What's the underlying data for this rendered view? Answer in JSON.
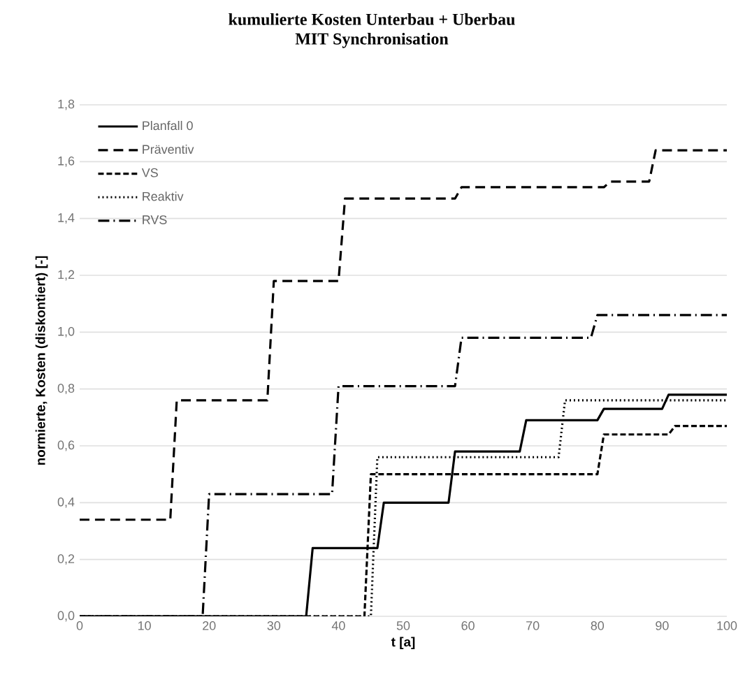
{
  "chart_data": {
    "type": "line",
    "title": "kumulierte Kosten Unterbau + Uberbau",
    "subtitle": "MIT Synchronisation",
    "xlabel": "t [a]",
    "ylabel": "normierte, Kosten (diskontiert) [-]",
    "xlim": [
      0,
      100
    ],
    "xticks": [
      0,
      10,
      20,
      30,
      40,
      50,
      60,
      70,
      80,
      90,
      100
    ],
    "ylim": [
      0,
      1.8
    ],
    "yticks": [
      {
        "value": 0,
        "label": "0,0"
      },
      {
        "value": 0.2,
        "label": "0,2"
      },
      {
        "value": 0.4,
        "label": "0,4"
      },
      {
        "value": 0.6,
        "label": "0,6"
      },
      {
        "value": 0.8,
        "label": "0,8"
      },
      {
        "value": 1.0,
        "label": "1,0"
      },
      {
        "value": 1.2,
        "label": "1,2"
      },
      {
        "value": 1.4,
        "label": "1,4"
      },
      {
        "value": 1.6,
        "label": "1,6"
      },
      {
        "value": 1.8,
        "label": "1,8"
      }
    ],
    "grid": "y",
    "legend": "top left",
    "marker": "none",
    "series": [
      {
        "name": "Planfall 0",
        "color": "#000000",
        "line_style": "solid",
        "x": [
          0,
          35,
          36,
          46,
          47,
          57,
          58,
          68,
          69,
          80,
          81,
          90,
          91,
          100
        ],
        "values": [
          0,
          0,
          0.24,
          0.24,
          0.4,
          0.4,
          0.58,
          0.58,
          0.69,
          0.69,
          0.73,
          0.73,
          0.78,
          0.78
        ]
      },
      {
        "name": "Präventiv",
        "color": "#000000",
        "line_style": "long dashed",
        "x": [
          0,
          14,
          15,
          29,
          30,
          40,
          41,
          58,
          59,
          81,
          82,
          88,
          89,
          100
        ],
        "values": [
          0.34,
          0.34,
          0.76,
          0.76,
          1.18,
          1.18,
          1.47,
          1.47,
          1.51,
          1.51,
          1.53,
          1.53,
          1.64,
          1.64
        ]
      },
      {
        "name": "VS",
        "color": "#000000",
        "line_style": "dashed",
        "x": [
          0,
          44,
          45,
          80,
          81,
          91,
          92,
          100
        ],
        "values": [
          0,
          0,
          0.5,
          0.5,
          0.64,
          0.64,
          0.67,
          0.67
        ]
      },
      {
        "name": "Reaktiv",
        "color": "#000000",
        "line_style": "dotted",
        "x": [
          0,
          45,
          46,
          74,
          75,
          100
        ],
        "values": [
          0,
          0,
          0.56,
          0.56,
          0.76,
          0.76
        ]
      },
      {
        "name": "RVS",
        "color": "#000000",
        "line_style": "dash dot",
        "x": [
          0,
          19,
          20,
          39,
          40,
          58,
          59,
          79,
          80,
          100
        ],
        "values": [
          0,
          0,
          0.43,
          0.43,
          0.81,
          0.81,
          0.98,
          0.98,
          1.06,
          1.06
        ]
      }
    ]
  }
}
